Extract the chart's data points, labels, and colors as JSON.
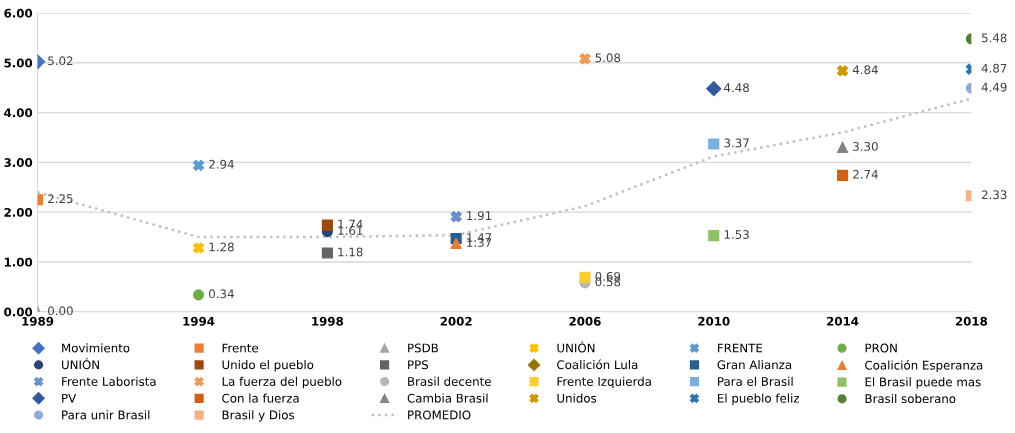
{
  "chart_data": {
    "type": "scatter",
    "xlim": [
      1989,
      2018
    ],
    "xticks": [
      1989,
      1994,
      1998,
      2002,
      2006,
      2010,
      2014,
      2018
    ],
    "ylim": [
      0,
      6
    ],
    "yticks": [
      {
        "value": 0,
        "label": "0.00"
      },
      {
        "value": 1,
        "label": "1.00"
      },
      {
        "value": 2,
        "label": "2.00"
      },
      {
        "value": 3,
        "label": "3.00"
      },
      {
        "value": 4,
        "label": "4.00"
      },
      {
        "value": 5,
        "label": "5.00"
      },
      {
        "value": 6,
        "label": "6.00"
      }
    ],
    "grid": "y",
    "legend": "bottom",
    "series": [
      {
        "name": "Movimiento",
        "color": "#4472c4",
        "marker": "diamond",
        "x": [
          1989
        ],
        "values": [
          5.02
        ],
        "value_labels": [
          "5.02"
        ]
      },
      {
        "name": "Frente",
        "color": "#ed7d31",
        "marker": "square",
        "x": [
          1989
        ],
        "values": [
          2.25
        ],
        "value_labels": [
          "2.25"
        ]
      },
      {
        "name": "PSDB",
        "color": "#a5a5a5",
        "marker": "triangle",
        "x": [
          1989
        ],
        "values": [
          0.0
        ],
        "value_labels": [
          "0.00"
        ]
      },
      {
        "name": "UNIÓN",
        "color": "#ffc000",
        "marker": "cross",
        "x": [
          1994
        ],
        "values": [
          1.28
        ],
        "value_labels": [
          "1.28"
        ]
      },
      {
        "name": "FRENTE",
        "color": "#5b9bd5",
        "marker": "cross",
        "x": [
          1994
        ],
        "values": [
          2.94
        ],
        "value_labels": [
          "2.94"
        ]
      },
      {
        "name": "PRON",
        "color": "#70ad47",
        "marker": "circle",
        "x": [
          1994
        ],
        "values": [
          0.34
        ],
        "value_labels": [
          "0.34"
        ]
      },
      {
        "name": "UNIÓN",
        "color": "#264478",
        "marker": "circle",
        "x": [
          1998
        ],
        "values": [
          1.61
        ],
        "value_labels": [
          "1.61"
        ]
      },
      {
        "name": "Unido el pueblo",
        "color": "#9e480e",
        "marker": "square",
        "x": [
          1998
        ],
        "values": [
          1.74
        ],
        "value_labels": [
          "1.74"
        ]
      },
      {
        "name": "PPS",
        "color": "#636363",
        "marker": "square",
        "x": [
          1998
        ],
        "values": [
          1.18
        ],
        "value_labels": [
          "1.18"
        ]
      },
      {
        "name": "Coalición Lula",
        "color": "#997300",
        "marker": "diamond"
      },
      {
        "name": "Gran Alianza",
        "color": "#255e91",
        "marker": "square",
        "x": [
          2002
        ],
        "values": [
          1.47
        ],
        "value_labels": [
          "1.47"
        ]
      },
      {
        "name": "Coalición Esperanza",
        "color": "#ed7d31",
        "marker": "triangle",
        "x": [
          2002
        ],
        "values": [
          1.37
        ],
        "value_labels": [
          "1.37"
        ]
      },
      {
        "name": "Frente Laborista",
        "color": "#698ed0",
        "marker": "cross",
        "x": [
          2002
        ],
        "values": [
          1.91
        ],
        "value_labels": [
          "1.91"
        ]
      },
      {
        "name": "La fuerza del pueblo",
        "color": "#f1975a",
        "marker": "cross",
        "x": [
          2006
        ],
        "values": [
          5.08
        ],
        "value_labels": [
          "5.08"
        ]
      },
      {
        "name": "Brasil decente",
        "color": "#b7b7b7",
        "marker": "circle",
        "x": [
          2006
        ],
        "values": [
          0.58
        ],
        "value_labels": [
          "0.58"
        ]
      },
      {
        "name": "Frente Izquierda",
        "color": "#ffcd33",
        "marker": "square",
        "x": [
          2006
        ],
        "values": [
          0.69
        ],
        "value_labels": [
          "0.69"
        ]
      },
      {
        "name": "Para el Brasil",
        "color": "#7cafdd",
        "marker": "square",
        "x": [
          2010
        ],
        "values": [
          3.37
        ],
        "value_labels": [
          "3.37"
        ]
      },
      {
        "name": "El Brasil puede mas",
        "color": "#8cc168",
        "marker": "square",
        "x": [
          2010
        ],
        "values": [
          1.53
        ],
        "value_labels": [
          "1.53"
        ]
      },
      {
        "name": "PV",
        "color": "#335aa1",
        "marker": "diamond",
        "x": [
          2010
        ],
        "values": [
          4.48
        ],
        "value_labels": [
          "4.48"
        ]
      },
      {
        "name": "Con la fuerza",
        "color": "#d26012",
        "marker": "square",
        "x": [
          2014
        ],
        "values": [
          2.74
        ],
        "value_labels": [
          "2.74"
        ]
      },
      {
        "name": "Cambia Brasil",
        "color": "#848484",
        "marker": "triangle",
        "x": [
          2014
        ],
        "values": [
          3.3
        ],
        "value_labels": [
          "3.30"
        ]
      },
      {
        "name": "Unidos",
        "color": "#cc9a00",
        "marker": "cross",
        "x": [
          2014
        ],
        "values": [
          4.84
        ],
        "value_labels": [
          "4.84"
        ]
      },
      {
        "name": "El pueblo feliz",
        "color": "#2e75b6",
        "marker": "cross",
        "x": [
          2018
        ],
        "values": [
          4.87
        ],
        "value_labels": [
          "4.87"
        ]
      },
      {
        "name": "Brasil soberano",
        "color": "#548235",
        "marker": "circle",
        "x": [
          2018
        ],
        "values": [
          5.48
        ],
        "value_labels": [
          "5.48"
        ]
      },
      {
        "name": "Para unir Brasil",
        "color": "#8faadc",
        "marker": "circle",
        "x": [
          2018
        ],
        "values": [
          4.49
        ],
        "value_labels": [
          "4.49"
        ]
      },
      {
        "name": "Brasil y Dios",
        "color": "#f4b183",
        "marker": "square",
        "x": [
          2018
        ],
        "values": [
          2.33
        ],
        "value_labels": [
          "2.33"
        ]
      },
      {
        "name": "PROMEDIO",
        "type": "line",
        "color": "#c0c0c0",
        "line_style": "dotted",
        "marker": "none",
        "x": [
          1989,
          1994,
          1998,
          2002,
          2006,
          2010,
          2014,
          2018
        ],
        "values": [
          2.4,
          1.5,
          1.5,
          1.54,
          2.12,
          3.12,
          3.6,
          4.28
        ]
      }
    ]
  }
}
